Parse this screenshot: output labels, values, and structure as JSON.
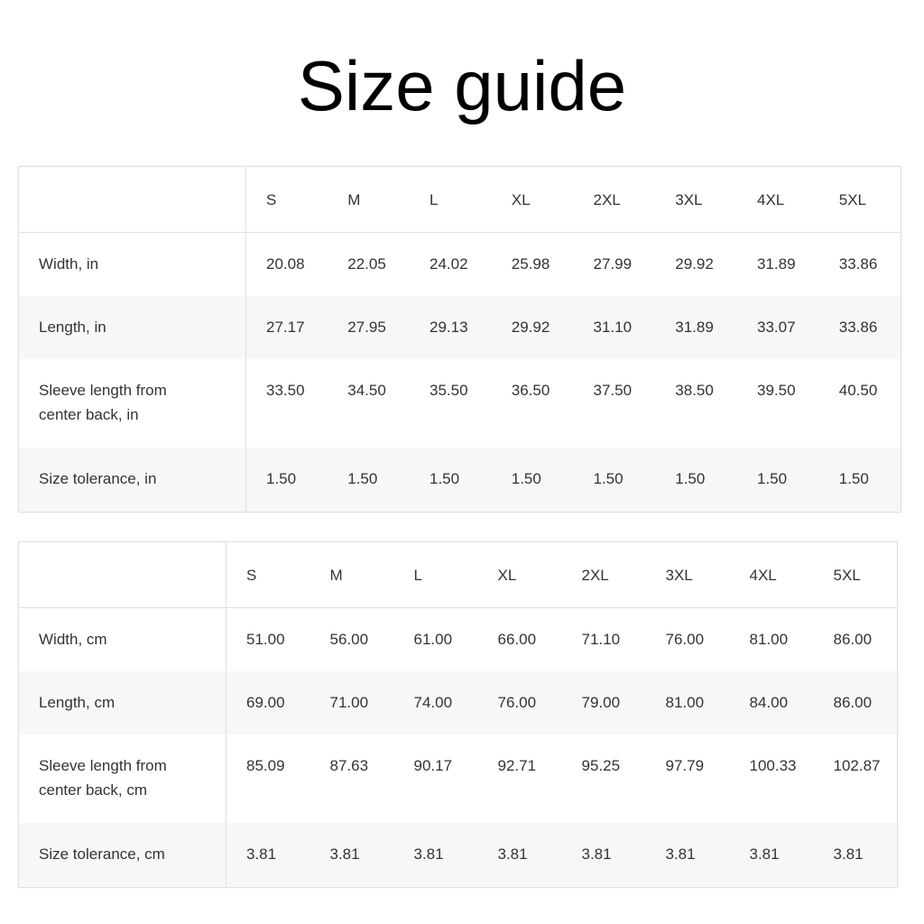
{
  "title": "Size guide",
  "tables": [
    {
      "sizes": [
        "S",
        "M",
        "L",
        "XL",
        "2XL",
        "3XL",
        "4XL",
        "5XL"
      ],
      "rows": [
        {
          "label": "Width, in",
          "values": [
            "20.08",
            "22.05",
            "24.02",
            "25.98",
            "27.99",
            "29.92",
            "31.89",
            "33.86"
          ]
        },
        {
          "label": "Length, in",
          "values": [
            "27.17",
            "27.95",
            "29.13",
            "29.92",
            "31.10",
            "31.89",
            "33.07",
            "33.86"
          ]
        },
        {
          "label": "Sleeve length from center back, in",
          "values": [
            "33.50",
            "34.50",
            "35.50",
            "36.50",
            "37.50",
            "38.50",
            "39.50",
            "40.50"
          ]
        },
        {
          "label": "Size tolerance, in",
          "values": [
            "1.50",
            "1.50",
            "1.50",
            "1.50",
            "1.50",
            "1.50",
            "1.50",
            "1.50"
          ]
        }
      ]
    },
    {
      "sizes": [
        "S",
        "M",
        "L",
        "XL",
        "2XL",
        "3XL",
        "4XL",
        "5XL"
      ],
      "rows": [
        {
          "label": "Width, cm",
          "values": [
            "51.00",
            "56.00",
            "61.00",
            "66.00",
            "71.10",
            "76.00",
            "81.00",
            "86.00"
          ]
        },
        {
          "label": "Length, cm",
          "values": [
            "69.00",
            "71.00",
            "74.00",
            "76.00",
            "79.00",
            "81.00",
            "84.00",
            "86.00"
          ]
        },
        {
          "label": "Sleeve length from center back, cm",
          "values": [
            "85.09",
            "87.63",
            "90.17",
            "92.71",
            "95.25",
            "97.79",
            "100.33",
            "102.87"
          ]
        },
        {
          "label": "Size tolerance, cm",
          "values": [
            "3.81",
            "3.81",
            "3.81",
            "3.81",
            "3.81",
            "3.81",
            "3.81",
            "3.81"
          ]
        }
      ]
    }
  ]
}
